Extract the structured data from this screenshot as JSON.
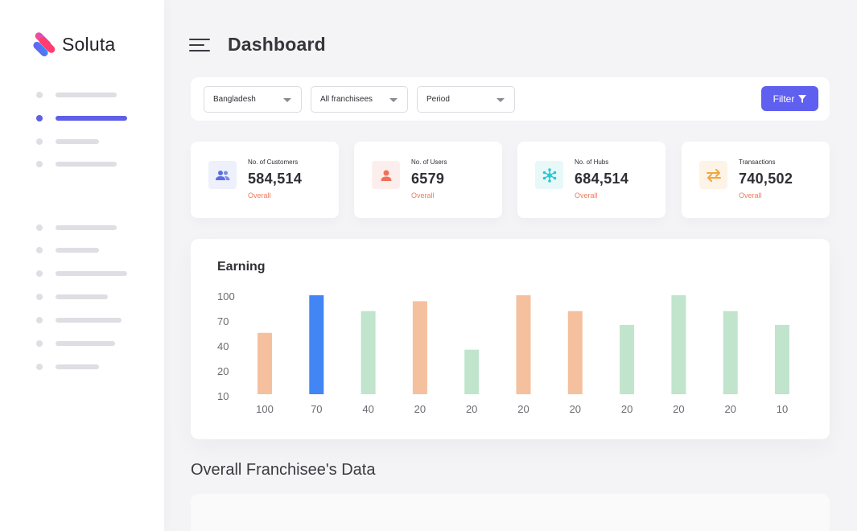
{
  "app": {
    "name": "Soluta",
    "colors": {
      "accent": "#5f5ff0"
    }
  },
  "header": {
    "title": "Dashboard",
    "menu_icon": "hamburger-icon"
  },
  "filters": {
    "country": "Bangladesh",
    "franchisee": "All franchisees",
    "period": "Period",
    "button_label": "Filter",
    "button_icon": "funnel-icon"
  },
  "stats": [
    {
      "label": "No. of Customers",
      "value": "584,514",
      "sub": "Overall",
      "icon": "users-icon",
      "color": "#5b6fe0"
    },
    {
      "label": "No. of Users",
      "value": "6579",
      "sub": "Overall",
      "icon": "user-icon",
      "color": "#f0705a"
    },
    {
      "label": "No. of Hubs",
      "value": "684,514",
      "sub": "Overall",
      "icon": "hub-icon",
      "color": "#2ec6d0"
    },
    {
      "label": "Transactions",
      "value": "740,502",
      "sub": "Overall",
      "icon": "swap-icon",
      "color": "#f5a63a"
    }
  ],
  "chart_data": {
    "type": "bar",
    "title": "Earning",
    "categories": [
      "100",
      "70",
      "40",
      "20",
      "20",
      "20",
      "20",
      "20",
      "20",
      "20",
      "10"
    ],
    "values": [
      62,
      100,
      84,
      94,
      45,
      100,
      84,
      70,
      100,
      84,
      70
    ],
    "y_ticks": [
      "100",
      "70",
      "40",
      "20",
      "10"
    ],
    "bar_colors": [
      "#f5c09e",
      "#4285f4",
      "#c0e4cc",
      "#f5c09e",
      "#c0e4cc",
      "#f5c09e",
      "#f5c09e",
      "#c0e4cc",
      "#c0e4cc",
      "#c0e4cc",
      "#c0e4cc"
    ],
    "grid": false,
    "legend": "none"
  },
  "section": {
    "title": "Overall Franchisee's Data"
  }
}
